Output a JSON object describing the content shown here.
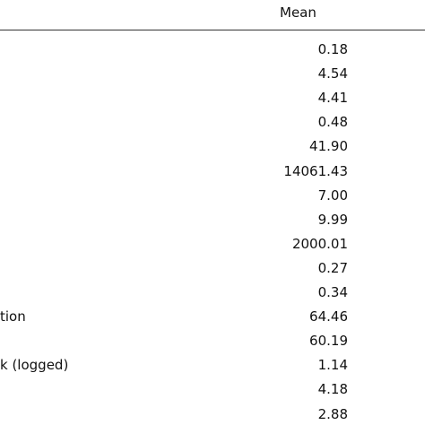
{
  "table": {
    "header": {
      "mean": "Mean"
    },
    "rows": [
      {
        "mean": "0.18"
      },
      {
        "mean": "4.54"
      },
      {
        "mean": "4.41"
      },
      {
        "mean": "0.48"
      },
      {
        "mean": "41.90"
      },
      {
        "mean": "14061.43"
      },
      {
        "mean": "7.00"
      },
      {
        "mean": "9.99"
      },
      {
        "mean": "2000.01"
      },
      {
        "mean": "0.27"
      },
      {
        "mean": "0.34"
      },
      {
        "label": "tion",
        "mean": "64.46"
      },
      {
        "mean": "60.19"
      },
      {
        "label": "k (logged)",
        "mean": "1.14"
      },
      {
        "mean": "4.18"
      },
      {
        "mean": "2.88"
      }
    ]
  }
}
